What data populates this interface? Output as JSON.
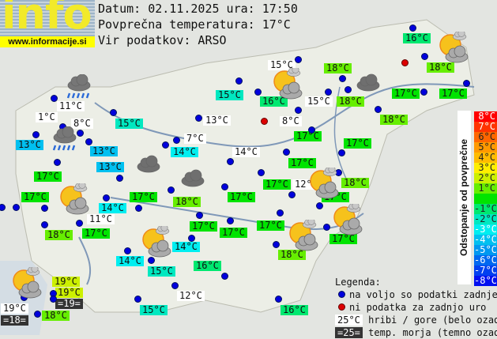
{
  "header": {
    "logo_word": "info",
    "logo_url": "www.informacije.si",
    "date_line": "Datum: 02.11.2025 ura: 17:50",
    "avg_line": "Povprečna temperatura: 17°C",
    "source_line": "Vir podatkov: ARSO"
  },
  "colors": {
    "dot_available": "#0000dd",
    "dot_missing": "#dd0000",
    "hill_bg": "#ffffff",
    "sea_bg": "#333333"
  },
  "scale": {
    "title": "Odstopanje od povprečne temperature:",
    "steps": [
      {
        "label": "8°C",
        "color": "#ff0000"
      },
      {
        "label": "7°C",
        "color": "#ff3300"
      },
      {
        "label": "6°C",
        "color": "#ff6600"
      },
      {
        "label": "5°C",
        "color": "#ff9900"
      },
      {
        "label": "4°C",
        "color": "#ffbb00"
      },
      {
        "label": "3°C",
        "color": "#ffee00"
      },
      {
        "label": "2°C",
        "color": "#ccf000"
      },
      {
        "label": "1°C",
        "color": "#66ee00"
      },
      {
        "label": "",
        "color": "#00e400"
      },
      {
        "label": "-1°C",
        "color": "#00e870"
      },
      {
        "label": "-2°C",
        "color": "#00e8c0"
      },
      {
        "label": "-3°C",
        "color": "#00eef0"
      },
      {
        "label": "-4°C",
        "color": "#00c0f0"
      },
      {
        "label": "-5°C",
        "color": "#0098f0"
      },
      {
        "label": "-6°C",
        "color": "#0068f0"
      },
      {
        "label": "-7°C",
        "color": "#0040f0"
      },
      {
        "label": "-8°C",
        "color": "#0010f0"
      }
    ]
  },
  "legend": {
    "title": "Legenda:",
    "available": "na voljo so podatki zadnje ure",
    "missing": "ni podatka za zadnjo uro",
    "hill_sample": "25°C",
    "hill_text": "hribi / gore (belo ozadje)",
    "sea_sample": "=25=",
    "sea_text": "temp. morja (temno ozadje)"
  },
  "stations": [
    {
      "temp": "11°C",
      "type": "hill"
    },
    {
      "temp": "1°C",
      "type": "hill"
    },
    {
      "temp": "8°C",
      "type": "hill"
    },
    {
      "temp": "13°C",
      "dev": -4
    },
    {
      "temp": "13°C",
      "dev": -4
    },
    {
      "temp": "13°C",
      "dev": -4
    },
    {
      "temp": "15°C",
      "dev": -2
    },
    {
      "temp": "17°C",
      "dev": 0
    },
    {
      "temp": "17°C",
      "dev": 0
    },
    {
      "temp": "14°C",
      "dev": -3
    },
    {
      "temp": "17°C",
      "dev": 0
    },
    {
      "temp": "15°C",
      "type": "hill"
    },
    {
      "temp": "15°C",
      "dev": -2
    },
    {
      "temp": "16°C",
      "dev": -1
    },
    {
      "temp": "15°C",
      "type": "hill"
    },
    {
      "temp": "13°C",
      "type": "hill"
    },
    {
      "temp": "8°C",
      "type": "hill"
    },
    {
      "temp": "17°C",
      "dev": 0
    },
    {
      "temp": "7°C",
      "type": "hill"
    },
    {
      "temp": "14°C",
      "dev": -3
    },
    {
      "temp": "14°C",
      "type": "hill"
    },
    {
      "temp": "17°C",
      "dev": 0
    },
    {
      "temp": "17°C",
      "dev": 0
    },
    {
      "temp": "12°C",
      "type": "hill"
    },
    {
      "temp": "17°C",
      "dev": 0
    },
    {
      "temp": "18°C",
      "dev": 1
    },
    {
      "temp": "16°C",
      "dev": -1
    },
    {
      "temp": "18°C",
      "dev": 1
    },
    {
      "temp": "18°C",
      "dev": 1
    },
    {
      "temp": "18°C",
      "dev": 1
    },
    {
      "temp": "17°C",
      "dev": 0
    },
    {
      "temp": "17°C",
      "dev": 0
    },
    {
      "temp": "18°C",
      "dev": 1
    },
    {
      "temp": "17°C",
      "dev": 0
    },
    {
      "temp": "18°C",
      "dev": 1
    },
    {
      "temp": "17°C",
      "dev": 0
    },
    {
      "temp": "17°C",
      "dev": 0
    },
    {
      "temp": "17°C",
      "dev": 0
    },
    {
      "temp": "17°C",
      "dev": 0
    },
    {
      "temp": "17°C",
      "dev": 0
    },
    {
      "temp": "18°C",
      "dev": 1
    },
    {
      "temp": "18°C",
      "dev": 1
    },
    {
      "temp": "11°C",
      "type": "hill"
    },
    {
      "temp": "17°C",
      "dev": 0
    },
    {
      "temp": "14°C",
      "dev": -3
    },
    {
      "temp": "15°C",
      "dev": -2
    },
    {
      "temp": "14°C",
      "dev": -3
    },
    {
      "temp": "16°C",
      "dev": -1
    },
    {
      "temp": "12°C",
      "type": "hill"
    },
    {
      "temp": "15°C",
      "dev": -2
    },
    {
      "temp": "16°C",
      "dev": -1
    },
    {
      "temp": "19°C",
      "dev": 2
    },
    {
      "temp": "19°C",
      "dev": 2
    },
    {
      "temp": "=19=",
      "type": "sea"
    },
    {
      "temp": "19°C",
      "type": "hill"
    },
    {
      "temp": "=18=",
      "type": "sea"
    },
    {
      "temp": "18°C",
      "dev": 1
    }
  ],
  "weather_icons": [
    "rain",
    "rain",
    "partly-cloudy",
    "partly-cloudy",
    "partly-cloudy",
    "partly-cloudy",
    "partly-cloudy",
    "partly-cloudy",
    "partly-cloudy",
    "partly-cloudy",
    "cloudy",
    "cloudy",
    "cloudy"
  ]
}
